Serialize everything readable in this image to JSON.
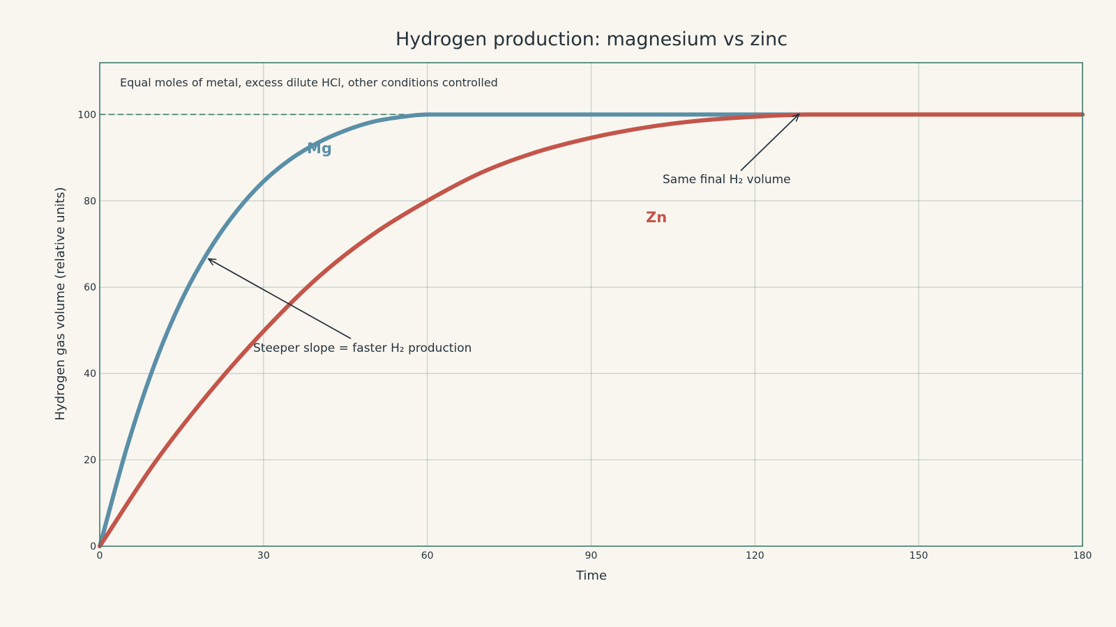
{
  "chart_data": {
    "type": "line",
    "title": "Hydrogen production: magnesium vs zinc",
    "subtitle": "Equal moles of metal, excess dilute HCl, other conditions controlled",
    "xlabel": "Time",
    "ylabel": "Hydrogen gas volume (relative units)",
    "xlim": [
      0,
      180
    ],
    "ylim": [
      0,
      112
    ],
    "xticks": [
      0,
      30,
      60,
      90,
      120,
      150,
      180
    ],
    "yticks": [
      0,
      20,
      40,
      60,
      80,
      100
    ],
    "grid": true,
    "legend": "none",
    "reference_line": {
      "y": 100,
      "style": "dashed",
      "color": "#3d7a6b"
    },
    "series": [
      {
        "name": "Mg",
        "color": "#5b8fa8",
        "x": [
          0,
          5,
          10,
          15,
          20,
          25,
          30,
          35,
          40,
          45,
          50,
          55,
          60,
          70,
          80,
          90,
          100,
          120,
          150,
          180
        ],
        "y": [
          0,
          23,
          42,
          57,
          68.5,
          77.5,
          84.5,
          89.7,
          93.5,
          96.3,
          98.3,
          99.4,
          100,
          100,
          100,
          100,
          100,
          100,
          100,
          100
        ]
      },
      {
        "name": "Zn",
        "color": "#c4554a",
        "x": [
          0,
          10,
          20,
          30,
          40,
          50,
          60,
          70,
          80,
          90,
          100,
          110,
          120,
          130,
          150,
          180
        ],
        "y": [
          0,
          19.2,
          35.5,
          49.8,
          62.3,
          72.2,
          80,
          86.6,
          91.3,
          94.6,
          97,
          98.6,
          99.5,
          100,
          100,
          100
        ]
      }
    ],
    "annotations": [
      {
        "text": "Steeper slope = faster H₂ production",
        "arrow_to": [
          20,
          66.5
        ]
      },
      {
        "text": "Same final H₂ volume",
        "arrow_to": [
          128,
          100
        ]
      }
    ]
  }
}
